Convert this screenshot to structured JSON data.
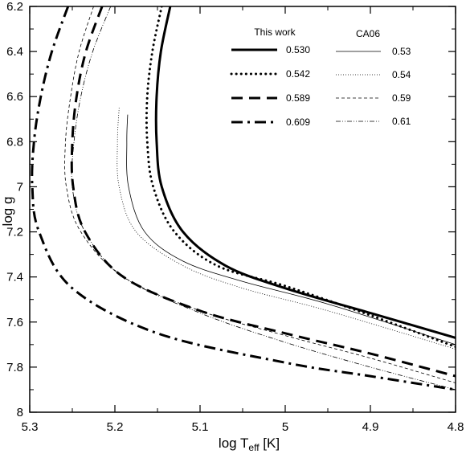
{
  "chart_data": {
    "type": "line",
    "xlabel": {
      "base": "log T",
      "sub": "eff",
      "unit": " [K]"
    },
    "ylabel": "log g",
    "xlim": [
      5.3,
      4.8
    ],
    "ylim": [
      8.0,
      6.2
    ],
    "x_reversed": true,
    "y_reversed": true,
    "x_ticks": [
      5.3,
      5.2,
      5.1,
      5.0,
      4.9,
      4.8
    ],
    "x_tick_labels": [
      "5.3",
      "5.2",
      "5.1",
      "5",
      "4.9",
      "4.8"
    ],
    "y_ticks": [
      6.2,
      6.4,
      6.6,
      6.8,
      7.0,
      7.2,
      7.4,
      7.6,
      7.8,
      8.0
    ],
    "y_tick_labels": [
      "6.2",
      "6.4",
      "6.6",
      "6.8",
      "7",
      "7.2",
      "7.4",
      "7.6",
      "7.8",
      "8"
    ],
    "legend": {
      "placement": "top-right",
      "headers": [
        "This work",
        "CA06"
      ]
    },
    "series": [
      {
        "name": "0.530",
        "group": "This work",
        "style": "solid",
        "weight": "thick",
        "points": [
          [
            5.135,
            6.2
          ],
          [
            5.146,
            6.4
          ],
          [
            5.151,
            6.6
          ],
          [
            5.151,
            6.8
          ],
          [
            5.145,
            7.0
          ],
          [
            5.12,
            7.2
          ],
          [
            5.07,
            7.35
          ],
          [
            5.0,
            7.45
          ],
          [
            4.9,
            7.56
          ],
          [
            4.8,
            7.67
          ]
        ]
      },
      {
        "name": "0.542",
        "group": "This work",
        "style": "dotted",
        "weight": "thick",
        "points": [
          [
            5.145,
            6.2
          ],
          [
            5.156,
            6.4
          ],
          [
            5.162,
            6.6
          ],
          [
            5.162,
            6.8
          ],
          [
            5.155,
            7.0
          ],
          [
            5.13,
            7.2
          ],
          [
            5.08,
            7.35
          ],
          [
            5.0,
            7.44
          ],
          [
            4.9,
            7.57
          ],
          [
            4.8,
            7.71
          ]
        ]
      },
      {
        "name": "0.589",
        "group": "This work",
        "style": "dashed",
        "weight": "thick",
        "points": [
          [
            5.215,
            6.2
          ],
          [
            5.234,
            6.4
          ],
          [
            5.245,
            6.6
          ],
          [
            5.25,
            6.8
          ],
          [
            5.249,
            7.0
          ],
          [
            5.235,
            7.2
          ],
          [
            5.19,
            7.4
          ],
          [
            5.1,
            7.55
          ],
          [
            5.0,
            7.65
          ],
          [
            4.9,
            7.74
          ],
          [
            4.8,
            7.84
          ]
        ]
      },
      {
        "name": "0.609",
        "group": "This work",
        "style": "dashdot",
        "weight": "thick",
        "points": [
          [
            5.255,
            6.2
          ],
          [
            5.274,
            6.4
          ],
          [
            5.287,
            6.6
          ],
          [
            5.295,
            6.8
          ],
          [
            5.297,
            7.0
          ],
          [
            5.289,
            7.2
          ],
          [
            5.25,
            7.45
          ],
          [
            5.15,
            7.65
          ],
          [
            5.0,
            7.78
          ],
          [
            4.9,
            7.84
          ],
          [
            4.8,
            7.9
          ]
        ]
      },
      {
        "name": "0.53",
        "group": "CA06",
        "style": "solid",
        "weight": "thin",
        "points": [
          [
            5.185,
            6.68
          ],
          [
            5.186,
            6.8
          ],
          [
            5.184,
            7.0
          ],
          [
            5.165,
            7.2
          ],
          [
            5.12,
            7.33
          ],
          [
            5.05,
            7.42
          ],
          [
            4.95,
            7.52
          ],
          [
            4.8,
            7.7
          ]
        ]
      },
      {
        "name": "0.54",
        "group": "CA06",
        "style": "dotted",
        "weight": "thin",
        "points": [
          [
            5.195,
            6.65
          ],
          [
            5.197,
            6.8
          ],
          [
            5.195,
            7.0
          ],
          [
            5.175,
            7.2
          ],
          [
            5.12,
            7.35
          ],
          [
            5.05,
            7.45
          ],
          [
            4.95,
            7.55
          ],
          [
            4.8,
            7.72
          ]
        ]
      },
      {
        "name": "0.59",
        "group": "CA06",
        "style": "dashed",
        "weight": "thin",
        "points": [
          [
            5.225,
            6.2
          ],
          [
            5.242,
            6.4
          ],
          [
            5.252,
            6.6
          ],
          [
            5.258,
            6.8
          ],
          [
            5.257,
            7.0
          ],
          [
            5.24,
            7.2
          ],
          [
            5.19,
            7.4
          ],
          [
            5.1,
            7.55
          ],
          [
            5.0,
            7.66
          ],
          [
            4.9,
            7.76
          ],
          [
            4.8,
            7.87
          ]
        ]
      },
      {
        "name": "0.61",
        "group": "CA06",
        "style": "dashdotdot",
        "weight": "thin",
        "points": [
          [
            5.205,
            6.2
          ],
          [
            5.226,
            6.4
          ],
          [
            5.24,
            6.6
          ],
          [
            5.248,
            6.8
          ],
          [
            5.25,
            7.0
          ],
          [
            5.235,
            7.2
          ],
          [
            5.19,
            7.4
          ],
          [
            5.1,
            7.56
          ],
          [
            5.0,
            7.69
          ],
          [
            4.9,
            7.8
          ],
          [
            4.8,
            7.9
          ]
        ]
      }
    ]
  }
}
